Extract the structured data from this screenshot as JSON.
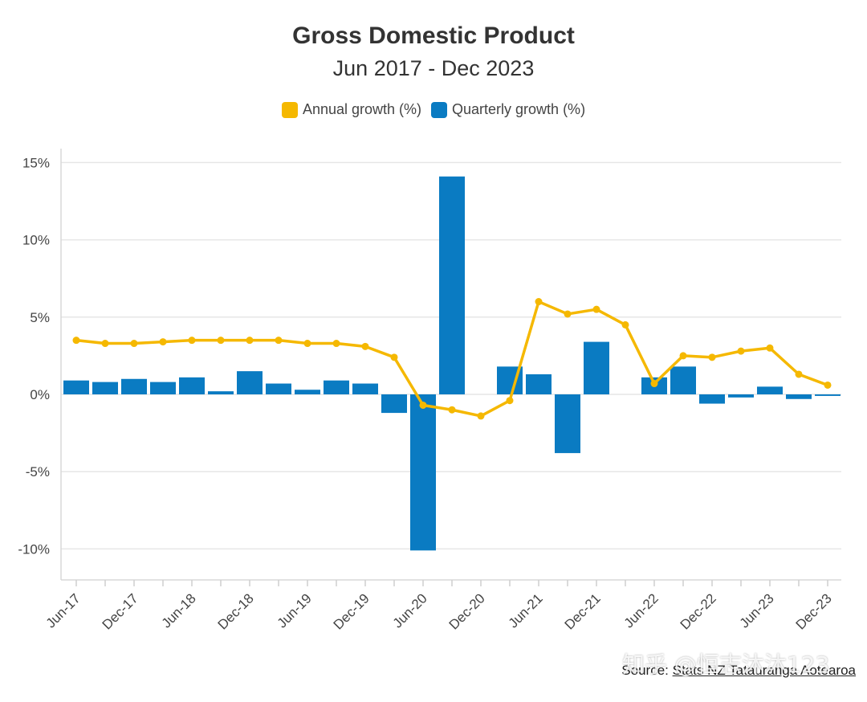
{
  "chart_data": {
    "type": "bar",
    "title": "Gross Domestic Product",
    "subtitle": "Jun 2017 - Dec 2023",
    "ylim": [
      -12,
      15.8
    ],
    "yticks": [
      15,
      10,
      5,
      0,
      -5,
      -10
    ],
    "ytick_labels": [
      "15%",
      "10%",
      "5%",
      "0%",
      "-5%",
      "-10%"
    ],
    "grid": true,
    "legend_position": "top-center",
    "categories": [
      "Jun-17",
      "Sep-17",
      "Dec-17",
      "Mar-18",
      "Jun-18",
      "Sep-18",
      "Dec-18",
      "Mar-19",
      "Jun-19",
      "Sep-19",
      "Dec-19",
      "Mar-20",
      "Jun-20",
      "Sep-20",
      "Dec-20",
      "Mar-21",
      "Jun-21",
      "Sep-21",
      "Dec-21",
      "Mar-22",
      "Jun-22",
      "Sep-22",
      "Dec-22",
      "Mar-23",
      "Jun-23",
      "Sep-23",
      "Dec-23"
    ],
    "xtick_labels": [
      "Jun-17",
      "",
      "Dec-17",
      "",
      "Jun-18",
      "",
      "Dec-18",
      "",
      "Jun-19",
      "",
      "Dec-19",
      "",
      "Jun-20",
      "",
      "Dec-20",
      "",
      "Jun-21",
      "",
      "Dec-21",
      "",
      "Jun-22",
      "",
      "Dec-22",
      "",
      "Jun-23",
      "",
      "Dec-23"
    ],
    "series": [
      {
        "name": "Annual growth (%)",
        "kind": "line",
        "color": "#f5b800",
        "values": [
          3.5,
          3.3,
          3.3,
          3.4,
          3.5,
          3.5,
          3.5,
          3.5,
          3.3,
          3.3,
          3.1,
          2.4,
          -0.7,
          -1.0,
          -1.4,
          -0.4,
          6.0,
          5.2,
          5.5,
          4.5,
          0.7,
          2.5,
          2.4,
          2.8,
          3.0,
          1.3,
          0.6
        ]
      },
      {
        "name": "Quarterly growth (%)",
        "kind": "bar",
        "color": "#0a7bc2",
        "values": [
          0.9,
          0.8,
          1.0,
          0.8,
          1.1,
          0.2,
          1.5,
          0.7,
          0.3,
          0.9,
          0.7,
          -1.2,
          -10.1,
          14.1,
          null,
          1.8,
          1.3,
          -3.8,
          3.4,
          null,
          1.1,
          1.8,
          -0.6,
          -0.2,
          0.5,
          -0.3,
          -0.1
        ]
      }
    ]
  },
  "legend": {
    "annual_label": "Annual growth (%)",
    "quarterly_label": "Quarterly growth (%)"
  },
  "source": {
    "prefix": "Source: ",
    "link_text": "Stats NZ Tatauranga Aotearoa"
  },
  "watermark": "知乎 @恒志沐沐123"
}
